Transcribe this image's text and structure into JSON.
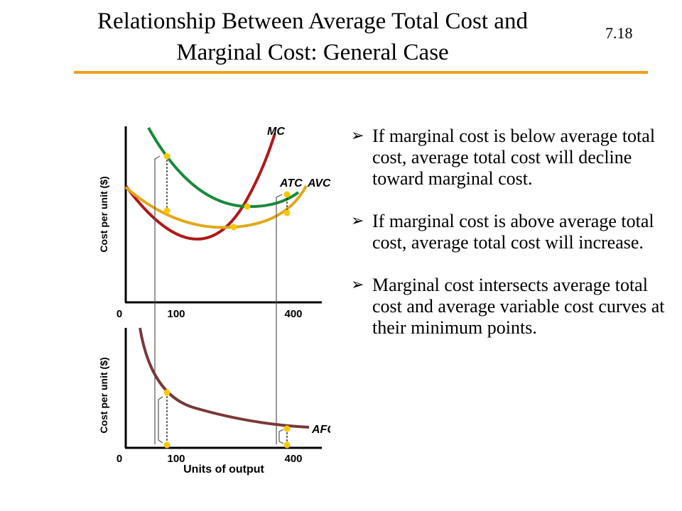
{
  "page": {
    "title_line1": "Relationship Between Average Total Cost and",
    "title_line2": "Marginal Cost: General Case",
    "slide_number": "7.18"
  },
  "bullets": [
    {
      "text": "If marginal cost is below average total cost, average total cost will decline toward marginal cost."
    },
    {
      "text": "If marginal cost is above average total cost, average total cost will increase."
    },
    {
      "text": "Marginal cost intersects average total cost and average variable cost curves at their minimum points."
    }
  ],
  "diagram": {
    "top_panel": {
      "ylabel": "Cost per unit ($)",
      "origin": "0",
      "tick_100": "100",
      "tick_400": "400",
      "label_mc": "MC",
      "label_atc": "ATC",
      "label_avc": "AVC"
    },
    "bottom_panel": {
      "ylabel": "Cost per unit ($)",
      "origin": "0",
      "tick_100": "100",
      "tick_400": "400",
      "xlabel": "Units of output",
      "label_afc": "AFC"
    },
    "colors": {
      "mc": "#b01818",
      "atc": "#178a3c",
      "avc": "#e0a818",
      "afc": "#7a3838",
      "points": "#f7c800",
      "rule": "#f0a020"
    }
  }
}
